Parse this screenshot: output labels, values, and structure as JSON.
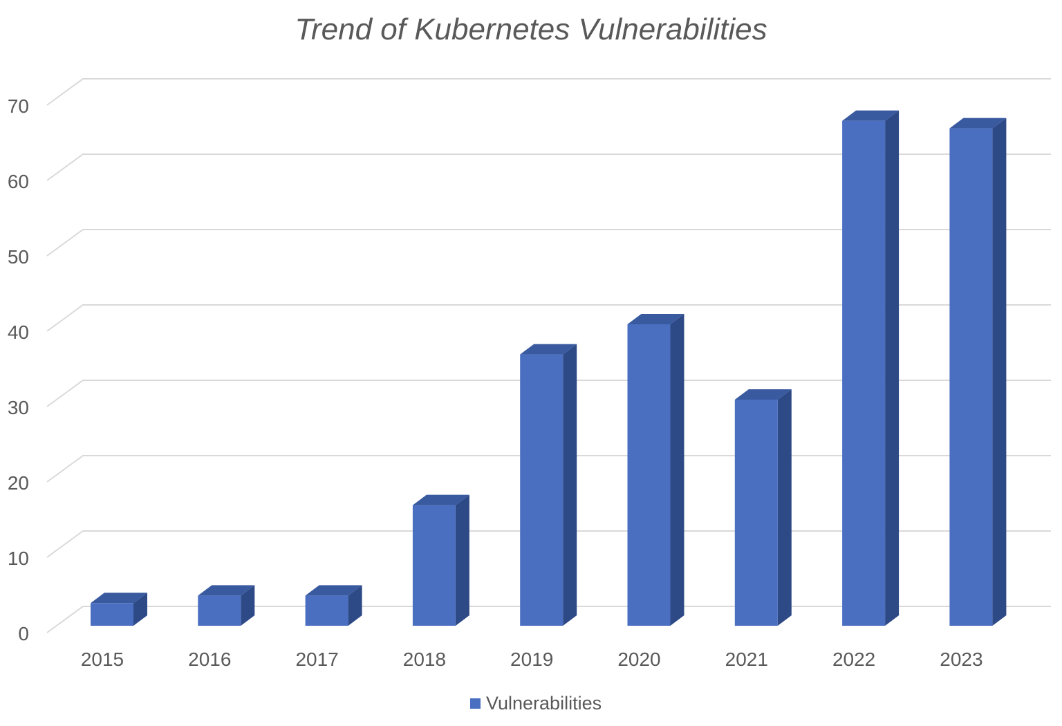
{
  "chart_data": {
    "type": "bar",
    "title": "Trend of Kubernetes Vulnerabilities",
    "xlabel": "",
    "ylabel": "",
    "categories": [
      "2015",
      "2016",
      "2017",
      "2018",
      "2019",
      "2020",
      "2021",
      "2022",
      "2023"
    ],
    "series": [
      {
        "name": "Vulnerabilities",
        "values": [
          3,
          4,
          4,
          16,
          36,
          40,
          30,
          67,
          66
        ]
      }
    ],
    "ylim": [
      0,
      70
    ],
    "yticks": [
      "0",
      "10",
      "20",
      "30",
      "40",
      "50",
      "60",
      "70"
    ],
    "grid": true,
    "legend": "bottom-center",
    "style": "3d-column",
    "colors": {
      "bar_front": "#4A6FC1",
      "bar_side": "#2E4A86",
      "bar_top": "#3A5AA0",
      "grid": "#D9D9D9",
      "text": "#595959"
    }
  }
}
